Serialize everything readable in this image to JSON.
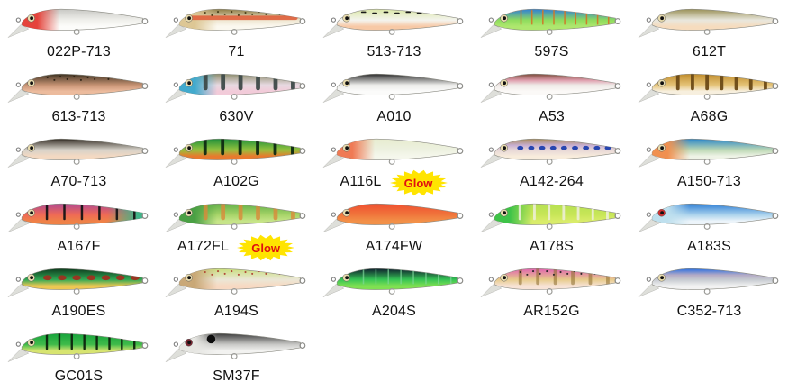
{
  "page": {
    "background": "#ffffff"
  },
  "glow_badge": {
    "label": "Glow",
    "bg_color": "#ffe400",
    "text_color": "#e01010"
  },
  "lures": [
    {
      "label": "022P-713",
      "glow": false,
      "gradient": {
        "back": "#c8c8c4",
        "body": "#f0f0ec",
        "belly": "#fcfcfa"
      },
      "head": "#e5433b",
      "patterns": []
    },
    {
      "label": "71",
      "glow": false,
      "gradient": {
        "back": "#8f7d45",
        "body": "#efe7d2",
        "belly": "#fbf8ef"
      },
      "head": "#ddc795",
      "patterns": [
        {
          "type": "stripe",
          "color": "#e0603c"
        },
        {
          "type": "speckles",
          "color": "#463a16"
        }
      ]
    },
    {
      "label": "513-713",
      "glow": false,
      "gradient": {
        "back": "#dce8a8",
        "body": "#f4f4ee",
        "belly": "#f7c9a6"
      },
      "patterns": [
        {
          "type": "dashes",
          "color": "#1a1a1a"
        }
      ]
    },
    {
      "label": "597S",
      "glow": false,
      "gradient": {
        "back": "#2f7fd6",
        "body": "#8edc5e",
        "belly": "#aee76e"
      },
      "patterns": [
        {
          "type": "thinstripes",
          "color": "#d07828",
          "count": 9
        }
      ]
    },
    {
      "label": "612T",
      "glow": false,
      "gradient": {
        "back": "#9a9158",
        "body": "#e9e7dd",
        "belly": "#f6dcbe"
      },
      "patterns": []
    },
    {
      "label": "613-713",
      "glow": false,
      "gradient": {
        "back": "#3f3322",
        "body": "#c69273",
        "belly": "#ecbb9d"
      },
      "patterns": [
        {
          "type": "speckles",
          "color": "#2a2012"
        }
      ]
    },
    {
      "label": "630V",
      "glow": false,
      "gradient": {
        "back": "#8f8f6f",
        "body": "#e7d9e1",
        "belly": "#f2cbd9"
      },
      "head": "#42aacd",
      "patterns": [
        {
          "type": "vbars",
          "color": "#3e4a49",
          "count": 6,
          "w": 5
        }
      ]
    },
    {
      "label": "A010",
      "glow": false,
      "gradient": {
        "back": "#2d2d2d",
        "body": "#ebebe9",
        "belly": "#fbfbfa"
      },
      "patterns": []
    },
    {
      "label": "A53",
      "glow": false,
      "gradient": {
        "back": "#7d4a3a",
        "mid": "#df9fae",
        "body": "#eee9e6",
        "belly": "#fbf9f7"
      },
      "patterns": []
    },
    {
      "label": "A68G",
      "glow": false,
      "gradient": {
        "back": "#c08c2c",
        "body": "#e5c377",
        "belly": "#f7efde"
      },
      "patterns": [
        {
          "type": "vbars",
          "color": "#6b4a16",
          "count": 7,
          "w": 4
        }
      ]
    },
    {
      "label": "A70-713",
      "glow": false,
      "gradient": {
        "back": "#332c24",
        "body": "#d6d2c9",
        "belly": "#f3d9c2"
      },
      "patterns": []
    },
    {
      "label": "A102G",
      "glow": false,
      "gradient": {
        "back": "#1e8f3a",
        "body": "#93c23e",
        "belly": "#e87a2e"
      },
      "patterns": [
        {
          "type": "vbars",
          "color": "#0e2a12",
          "count": 6,
          "w": 4
        }
      ]
    },
    {
      "label": "A116L",
      "glow": true,
      "gradient": {
        "back": "#e7eccf",
        "body": "#edf1e0",
        "belly": "#f5f7ec"
      },
      "head": "#ef7a55",
      "patterns": []
    },
    {
      "label": "A142-264",
      "glow": false,
      "gradient": {
        "back": "#a98b59",
        "mid": "#c7aed0",
        "body": "#e6d6d6",
        "belly": "#f8ecdc"
      },
      "patterns": [
        {
          "type": "ovals",
          "color": "#1f3fae",
          "count": 9,
          "rx": 3.6,
          "ry": 2.4
        }
      ]
    },
    {
      "label": "A150-713",
      "glow": false,
      "gradient": {
        "back": "#2b86c8",
        "body": "#bcd8b4",
        "belly": "#eef3e6"
      },
      "head": "#f09050",
      "patterns": []
    },
    {
      "label": "A167F",
      "glow": false,
      "gradient": {
        "back": "#b14a92",
        "body": "#ef6a55",
        "belly": "#ef8147"
      },
      "tail": "#3fb489",
      "patterns": [
        {
          "type": "vbars",
          "color": "#141414",
          "count": 6,
          "w": 2.6
        }
      ]
    },
    {
      "label": "A172FL",
      "glow": true,
      "gradient": {
        "back": "#63b04a",
        "body": "#a6d468",
        "belly": "#c6e488"
      },
      "head": "#4aa044",
      "patterns": [
        {
          "type": "vbars",
          "color": "#da8a3a",
          "count": 6,
          "w": 5,
          "op": 0.8
        }
      ]
    },
    {
      "label": "A174FW",
      "glow": false,
      "gradient": {
        "back": "#ef4f2f",
        "body": "#f0763c",
        "belly": "#f29048"
      },
      "patterns": []
    },
    {
      "label": "A178S",
      "glow": false,
      "gradient": {
        "back": "#b5e051",
        "body": "#c8e658",
        "belly": "#d9ec6a"
      },
      "head": "#3fc348",
      "patterns": [
        {
          "type": "vbars",
          "color": "#eeeedd",
          "count": 7,
          "w": 3,
          "op": 0.85
        }
      ]
    },
    {
      "label": "A183S",
      "glow": false,
      "gradient": {
        "back": "#2f7fd6",
        "body": "#aad2ec",
        "belly": "#ecf4fa"
      },
      "head": "#bfe0ee",
      "eye": "#d03030",
      "patterns": []
    },
    {
      "label": "A190ES",
      "glow": false,
      "gradient": {
        "back": "#0f3a1e",
        "body": "#2fa854",
        "belly": "#ecc753"
      },
      "patterns": [
        {
          "type": "ovals",
          "color": "#9e3020",
          "count": 7,
          "rx": 5,
          "ry": 3
        }
      ]
    },
    {
      "label": "A194S",
      "glow": false,
      "gradient": {
        "back": "#c9de7d",
        "body": "#ebe7d6",
        "belly": "#f7d9c2"
      },
      "head": "#c9a877",
      "patterns": [
        {
          "type": "speckles",
          "color": "#b04030"
        }
      ]
    },
    {
      "label": "A204S",
      "glow": false,
      "gradient": {
        "back": "#0f1e2e",
        "body": "#35c355",
        "belly": "#7fe052"
      },
      "patterns": [
        {
          "type": "thinstripes",
          "color": "#7fd79a",
          "count": 8,
          "op": 0.7
        }
      ]
    },
    {
      "label": "AR152G",
      "glow": false,
      "gradient": {
        "back": "#e063b0",
        "body": "#e7cb8b",
        "belly": "#f7e3d6"
      },
      "patterns": [
        {
          "type": "vbars",
          "color": "#8a6a2a",
          "count": 6,
          "w": 4,
          "op": 0.55
        },
        {
          "type": "speckles",
          "color": "#222222"
        }
      ]
    },
    {
      "label": "C352-713",
      "glow": false,
      "gradient": {
        "back": "#2a6fe0",
        "mid": "#b3aac6",
        "body": "#c6cad0",
        "belly": "#f2f2f2"
      },
      "patterns": []
    },
    {
      "label": "GC01S",
      "glow": false,
      "gradient": {
        "back": "#17a33c",
        "body": "#3fbb4a",
        "belly": "#d7e470"
      },
      "patterns": [
        {
          "type": "vbars",
          "color": "#0d230d",
          "count": 8,
          "w": 2.5
        }
      ]
    },
    {
      "label": "SM37F",
      "glow": false,
      "gradient": {
        "back": "#3d3d3d",
        "body": "#c9c9c7",
        "belly": "#f2f2f0"
      },
      "head": "#e6e6e2",
      "eye": "#7a2430",
      "patterns": [
        {
          "type": "spot",
          "color": "#0d0d0d"
        }
      ]
    }
  ]
}
